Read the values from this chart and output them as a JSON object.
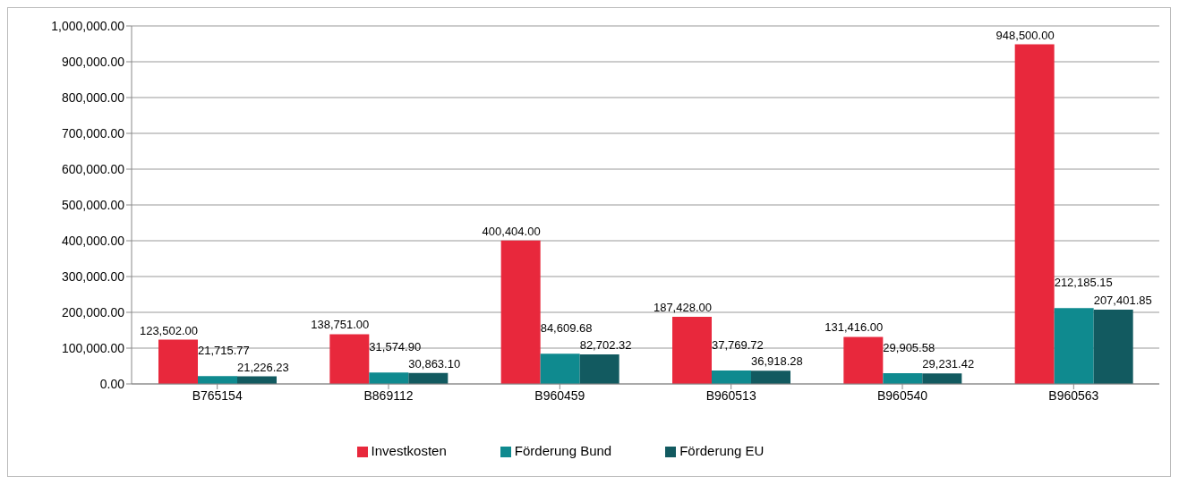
{
  "chart_data": {
    "type": "bar",
    "categories": [
      "B765154",
      "B869112",
      "B960459",
      "B960513",
      "B960540",
      "B960563"
    ],
    "series": [
      {
        "name": "Investkosten",
        "color": "#e8283c",
        "values": [
          123502,
          138751,
          400404,
          187428,
          131416,
          948500
        ],
        "value_labels": [
          "123,502.00",
          "138,751.00",
          "400,404.00",
          "187,428.00",
          "131,416.00",
          "948,500.00"
        ]
      },
      {
        "name": "Förderung Bund",
        "color": "#0f8a8f",
        "values": [
          21715.77,
          31574.9,
          84609.68,
          37769.72,
          29905.58,
          212185.15
        ],
        "value_labels": [
          "21,715.77",
          "31,574.90",
          "84,609.68",
          "37,769.72",
          "29,905.58",
          "212,185.15"
        ]
      },
      {
        "name": "Förderung EU",
        "color": "#125a60",
        "values": [
          21226.23,
          30863.1,
          82702.32,
          36918.28,
          29231.42,
          207401.85
        ],
        "value_labels": [
          "21,226.23",
          "30,863.10",
          "82,702.32",
          "36,918.28",
          "29,231.42",
          "207,401.85"
        ]
      }
    ],
    "ylim": [
      0,
      1000000
    ],
    "yticks": [
      {
        "value": 0,
        "label": "0.00"
      },
      {
        "value": 100000,
        "label": "100,000.00"
      },
      {
        "value": 200000,
        "label": "200,000.00"
      },
      {
        "value": 300000,
        "label": "300,000.00"
      },
      {
        "value": 400000,
        "label": "400,000.00"
      },
      {
        "value": 500000,
        "label": "500,000.00"
      },
      {
        "value": 600000,
        "label": "600,000.00"
      },
      {
        "value": 700000,
        "label": "700,000.00"
      },
      {
        "value": 800000,
        "label": "800,000.00"
      },
      {
        "value": 900000,
        "label": "900,000.00"
      },
      {
        "value": 1000000,
        "label": "1,000,000.00"
      }
    ],
    "grid": "y",
    "legend": "bottom"
  }
}
